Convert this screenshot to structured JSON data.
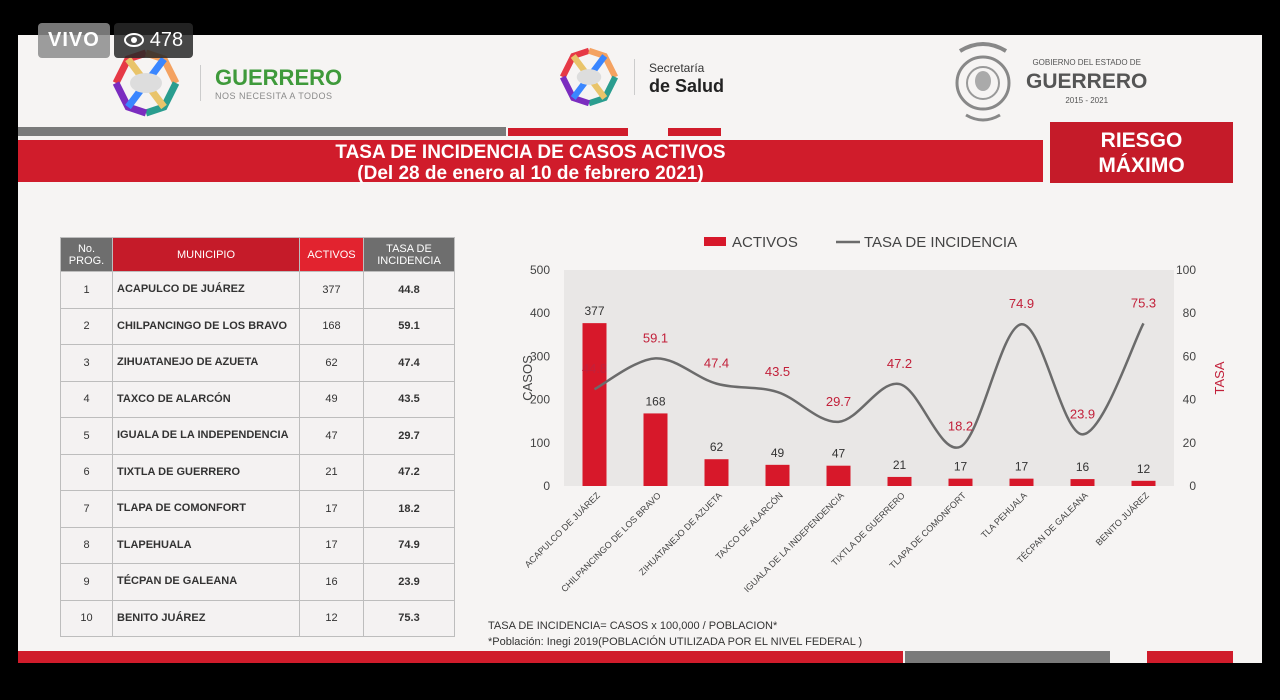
{
  "live": {
    "label": "VIVO",
    "viewers": "478"
  },
  "header": {
    "guerrero": {
      "name": "GUERRERO",
      "tagline": "NOS NECESITA A TODOS"
    },
    "salud": {
      "line1": "Secretaría",
      "line2": "de Salud"
    },
    "gobierno": {
      "line1": "GOBIERNO DEL ESTADO DE",
      "line2": "GUERRERO",
      "line3": "2015 - 2021"
    }
  },
  "title": {
    "line1": "TASA DE INCIDENCIA DE CASOS ACTIVOS",
    "line2": "(Del 28 de enero al 10 de febrero 2021)"
  },
  "risk": {
    "line1": "RIESGO",
    "line2": "MÁXIMO"
  },
  "table": {
    "headers": {
      "no": "No. PROG.",
      "municipio": "MUNICIPIO",
      "activos": "ACTIVOS",
      "tasa": "TASA DE INCIDENCIA"
    },
    "rows": [
      {
        "no": "1",
        "municipio": "ACAPULCO DE JUÁREZ",
        "activos": "377",
        "tasa": "44.8"
      },
      {
        "no": "2",
        "municipio": "CHILPANCINGO DE LOS BRAVO",
        "activos": "168",
        "tasa": "59.1"
      },
      {
        "no": "3",
        "municipio": "ZIHUATANEJO DE AZUETA",
        "activos": "62",
        "tasa": "47.4"
      },
      {
        "no": "4",
        "municipio": "TAXCO DE ALARCÓN",
        "activos": "49",
        "tasa": "43.5"
      },
      {
        "no": "5",
        "municipio": "IGUALA DE LA INDEPENDENCIA",
        "activos": "47",
        "tasa": "29.7"
      },
      {
        "no": "6",
        "municipio": "TIXTLA DE GUERRERO",
        "activos": "21",
        "tasa": "47.2"
      },
      {
        "no": "7",
        "municipio": "TLAPA DE COMONFORT",
        "activos": "17",
        "tasa": "18.2"
      },
      {
        "no": "8",
        "municipio": "TLAPEHUALA",
        "activos": "17",
        "tasa": "74.9"
      },
      {
        "no": "9",
        "municipio": "TÉCPAN DE GALEANA",
        "activos": "16",
        "tasa": "23.9"
      },
      {
        "no": "10",
        "municipio": "BENITO JUÁREZ",
        "activos": "12",
        "tasa": "75.3"
      }
    ]
  },
  "chart_data": {
    "type": "bar",
    "legend": [
      "ACTIVOS",
      "TASA DE INCIDENCIA"
    ],
    "legend_position": "top-center",
    "categories": [
      "ACAPULCO DE JUÁREZ",
      "CHILPANCINGO DE LOS BRAVO",
      "ZIHUATANEJO DE AZUETA",
      "TAXCO DE ALARCÓN",
      "IGUALA DE LA INDEPENDENCIA",
      "TIXTLA DE GUERRERO",
      "TLAPA DE COMONFORT",
      "TLA PEHUALA",
      "TÉCPAN DE GALEANA",
      "BENITO JUÁREZ"
    ],
    "series": [
      {
        "name": "ACTIVOS",
        "type": "bar",
        "axis": "left",
        "color": "#d7182a",
        "values": [
          377,
          168,
          62,
          49,
          47,
          21,
          17,
          17,
          16,
          12
        ]
      },
      {
        "name": "TASA DE INCIDENCIA",
        "type": "line",
        "smooth": true,
        "axis": "right",
        "color": "#6b6b6b",
        "label_color": "#c2203a",
        "values": [
          44.8,
          59.1,
          47.4,
          43.5,
          29.7,
          47.2,
          18.2,
          74.9,
          23.9,
          75.3
        ]
      }
    ],
    "ylabel": "CASOS",
    "y2label": "TASA",
    "ylim": [
      0,
      500
    ],
    "y2lim": [
      0,
      100
    ],
    "yticks": [
      "0",
      "100",
      "200",
      "300",
      "400",
      "500"
    ],
    "y2ticks": [
      "0",
      "20",
      "40",
      "60",
      "80",
      "100"
    ],
    "grid": false
  },
  "notes": {
    "line1": "TASA DE INCIDENCIA= CASOS x 100,000 / POBLACION*",
    "line2": "*Población: Inegi 2019(POBLACIÓN UTILIZADA POR EL NIVEL FEDERAL )"
  },
  "colors": {
    "red": "#d01c2b",
    "gray": "#7a7a7a",
    "green": "#3f9a3b"
  }
}
